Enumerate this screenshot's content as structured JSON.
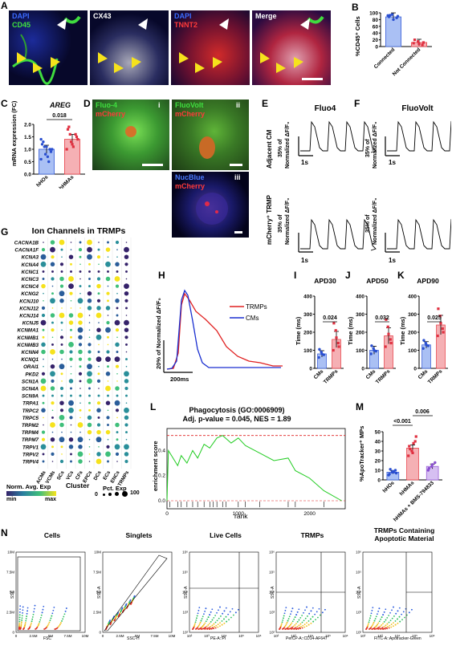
{
  "panels": {
    "A": {
      "label": "A",
      "image_labels": [
        "DAPI",
        "CD45",
        "CX43",
        "DAPI",
        "TNNT2",
        "Merge"
      ]
    },
    "B": {
      "label": "B",
      "ylabel": "%CD45⁺ Cells",
      "yticks": [
        "0",
        "20",
        "40",
        "60",
        "80",
        "100"
      ],
      "categories": [
        "Connected",
        "Not Connected"
      ],
      "colors": {
        "connected": "#3a5fd9",
        "not": "#e8434a"
      }
    },
    "C": {
      "label": "C",
      "title": "AREG",
      "ylabel": "mRNA expression (FC)",
      "yticks": [
        "0.0",
        "0.5",
        "1.0",
        "1.5",
        "2.0"
      ],
      "categories": [
        "hHOs",
        "hHMAs"
      ],
      "pvalue": "0.018"
    },
    "D": {
      "label": "D",
      "panels": [
        {
          "roman": "i",
          "l1": "Fluo-4",
          "l2": "mCherry"
        },
        {
          "roman": "ii",
          "l1": "FluoVolt",
          "l2": "mCherry"
        },
        {
          "roman": "iii",
          "l1": "NucBlue",
          "l2": "mCherry"
        }
      ]
    },
    "E": {
      "label": "E",
      "title": "Fluo4",
      "row1": "Adjacent CM",
      "row2": "mCherry⁺ TRMP",
      "scale1": "35% of",
      "scale2": "Normalized ΔF/F₀",
      "time": "1s"
    },
    "F": {
      "label": "F",
      "title": "FluoVolt",
      "scale1": "35% of",
      "scale2": "Normalized ΔF/F₀",
      "time": "1s"
    },
    "G": {
      "label": "G",
      "title": "Ion Channels in TRMPs",
      "genes": [
        "CACNA1B",
        "CACNA1F",
        "KCNA3",
        "KCNA4",
        "KCNC1",
        "KCNC3",
        "KCNC4",
        "KCNG2",
        "KCNJ10",
        "KCNJ12",
        "KCNJ14",
        "KCNJ5",
        "KCNMA1",
        "KCNMB1",
        "KCNMB3",
        "KCNN4",
        "KCNQ1",
        "ORAI1",
        "PKD2",
        "SCN1A",
        "SCN4A",
        "SCN9A",
        "TRPA1",
        "TRPC2",
        "TRPC5",
        "TRPM2",
        "TRPM4",
        "TRPM7",
        "TRPV1",
        "TRPV2",
        "TRPV4"
      ],
      "clusters": [
        "ACMs",
        "VCMs",
        "SCs",
        "VCs",
        "CFs",
        "EPCs",
        "DCs",
        "ECs",
        "ENCs",
        "TRMPs"
      ],
      "legend_color": "Norm. Avg. Exp",
      "legend_min": "min",
      "legend_max": "max",
      "cluster_label": "Cluster",
      "legend_size": "Pct. Exp",
      "size_min": "0",
      "size_max": "100"
    },
    "H": {
      "label": "H",
      "ylabel": "20% of Normalized ΔF/F₀",
      "time": "200ms",
      "legend": [
        "TRMPs",
        "CMs"
      ],
      "colors": {
        "trmp": "#e02020",
        "cm": "#1a2fd0"
      }
    },
    "I": {
      "label": "I",
      "title": "APD30",
      "ylabel": "Time (ms)",
      "yticks": [
        "0",
        "100",
        "200",
        "300",
        "400"
      ],
      "categories": [
        "CMs",
        "TRMPs"
      ],
      "pvalue": "0.024"
    },
    "J": {
      "label": "J",
      "title": "APD50",
      "ylabel": "Time (ms)",
      "yticks": [
        "0",
        "100",
        "200",
        "300",
        "400"
      ],
      "categories": [
        "CMs",
        "TRMPs"
      ],
      "pvalue": "0.032"
    },
    "K": {
      "label": "K",
      "title": "APD90",
      "ylabel": "Time (ms)",
      "yticks": [
        "0",
        "100",
        "200",
        "300",
        "400"
      ],
      "categories": [
        "CMs",
        "TRMPs"
      ],
      "pvalue": "0.025"
    },
    "L": {
      "label": "L",
      "title": "Phagocytosis (GO:0006909)",
      "subtitle": "Adj. p-value = 0.045, NES = 1.89",
      "ylabel": "enrichment score",
      "xlabel": "rank",
      "yticks": [
        "0.0",
        "0.2",
        "0.4"
      ],
      "xticks": [
        "0",
        "1000",
        "2000"
      ]
    },
    "M": {
      "label": "M",
      "ylabel": "%ApoTracker⁺ MPs",
      "yticks": [
        "0",
        "10",
        "20",
        "30",
        "40",
        "50"
      ],
      "categories": [
        "hHOs",
        "hHMAs",
        "hHMAs + BMS-794833"
      ],
      "p1": "<0.001",
      "p2": "0.006"
    },
    "N": {
      "label": "N",
      "gates": [
        {
          "title": "Cells",
          "x": "FSC",
          "y": "SSC",
          "ticks": [
            "0",
            "2.5M",
            "5M",
            "7.5M",
            "10M"
          ]
        },
        {
          "title": "Singlets",
          "x": "SSC-H",
          "y": "SSC-A",
          "ticks": [
            "0",
            "2.5M",
            "5M",
            "7.5M",
            "10M"
          ]
        },
        {
          "title": "Live Cells",
          "x": "PE-A::PI",
          "y": "SSC-A",
          "ticks": [
            "10²",
            "10³",
            "10⁴",
            "10⁵",
            "10⁶"
          ]
        },
        {
          "title": "TRMPs",
          "x": "PerCP-A::CD14-AF647",
          "y": "SSC-A",
          "ticks": [
            "10²",
            "10³",
            "10⁴",
            "10⁵",
            "10⁶"
          ]
        },
        {
          "title": "TRMPs Containing Apoptotic Material",
          "x": "FITC-A::Apotracker-Green",
          "y": "SSC-A",
          "ticks": [
            "10²",
            "10³",
            "10⁴",
            "10⁵",
            "10⁶"
          ]
        }
      ]
    }
  },
  "chart_data": [
    {
      "type": "bar",
      "panel": "B",
      "categories": [
        "Connected",
        "Not Connected"
      ],
      "values": [
        88,
        12
      ],
      "ylim": [
        0,
        100
      ]
    },
    {
      "type": "bar",
      "panel": "C",
      "categories": [
        "hHOs",
        "hHMAs"
      ],
      "values": [
        1.0,
        1.4
      ],
      "ylim": [
        0,
        2.0
      ]
    },
    {
      "type": "bar",
      "panel": "I",
      "categories": [
        "CMs",
        "TRMPs"
      ],
      "values": [
        80,
        160
      ],
      "ylim": [
        0,
        400
      ]
    },
    {
      "type": "bar",
      "panel": "J",
      "categories": [
        "CMs",
        "TRMPs"
      ],
      "values": [
        100,
        180
      ],
      "ylim": [
        0,
        400
      ]
    },
    {
      "type": "bar",
      "panel": "K",
      "categories": [
        "CMs",
        "TRMPs"
      ],
      "values": [
        130,
        240
      ],
      "ylim": [
        0,
        400
      ]
    },
    {
      "type": "bar",
      "panel": "M",
      "categories": [
        "hHOs",
        "hHMAs",
        "hHMAs + BMS-794833"
      ],
      "values": [
        8,
        33,
        14
      ],
      "ylim": [
        0,
        50
      ]
    }
  ]
}
